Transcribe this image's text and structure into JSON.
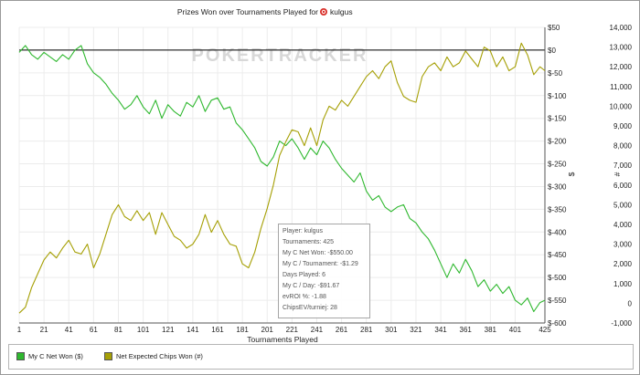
{
  "colors": {
    "series1": "#2fb82f",
    "series2": "#a6a006",
    "grid": "#ececec",
    "zero_line": "#000000"
  },
  "icons": {
    "title_icon": "poker-chip-icon"
  },
  "watermark": "POKERTRACKER",
  "chart_data": {
    "type": "line",
    "title": "Prizes Won over Tournaments Played for",
    "player": "kulgus",
    "xlabel": "Tournaments Played",
    "ylabel_left": "$",
    "ylabel_right": "#",
    "xlim": [
      1,
      425
    ],
    "ylim_left": [
      -600,
      50
    ],
    "ylim_right": [
      -1000,
      14000
    ],
    "x_ticks": [
      1,
      21,
      41,
      61,
      81,
      101,
      121,
      141,
      161,
      181,
      201,
      221,
      241,
      261,
      281,
      301,
      321,
      341,
      361,
      381,
      401,
      425
    ],
    "y_ticks_left": [
      50,
      0,
      -50,
      -100,
      -150,
      -200,
      -250,
      -300,
      -350,
      -400,
      -450,
      -500,
      -550,
      -600
    ],
    "y_ticks_right": [
      14000,
      13000,
      12000,
      11000,
      10000,
      9000,
      8000,
      7000,
      6000,
      5000,
      4000,
      3000,
      2000,
      1000,
      0,
      -1000
    ],
    "y_tick_labels_left": [
      "$50",
      "$0",
      "$-50",
      "$-100",
      "$-150",
      "$-200",
      "$-250",
      "$-300",
      "$-350",
      "$-400",
      "$-450",
      "$-500",
      "$-550",
      "$-600"
    ],
    "y_tick_labels_right": [
      "14,000",
      "13,000",
      "12,000",
      "11,000",
      "10,000",
      "9,000",
      "8,000",
      "7,000",
      "6,000",
      "5,000",
      "4,000",
      "3,000",
      "2,000",
      "1,000",
      "0",
      "-1,000"
    ],
    "grid": true,
    "legend_position": "bottom",
    "series": [
      {
        "name": "My C Net Won ($)",
        "axis": "left",
        "x": [
          1,
          6,
          11,
          16,
          21,
          26,
          31,
          36,
          41,
          46,
          51,
          56,
          61,
          66,
          71,
          76,
          81,
          86,
          91,
          96,
          101,
          106,
          111,
          116,
          121,
          126,
          131,
          136,
          141,
          146,
          151,
          156,
          161,
          166,
          171,
          176,
          181,
          186,
          191,
          196,
          201,
          206,
          211,
          216,
          221,
          226,
          231,
          236,
          241,
          246,
          251,
          256,
          261,
          266,
          271,
          276,
          281,
          286,
          291,
          296,
          301,
          306,
          311,
          316,
          321,
          326,
          331,
          336,
          341,
          346,
          351,
          356,
          361,
          366,
          371,
          376,
          381,
          386,
          391,
          396,
          401,
          406,
          411,
          416,
          421,
          425
        ],
        "y": [
          -5,
          10,
          -10,
          -20,
          -5,
          -15,
          -25,
          -10,
          -20,
          0,
          10,
          -30,
          -50,
          -60,
          -75,
          -95,
          -110,
          -130,
          -120,
          -100,
          -125,
          -140,
          -110,
          -150,
          -120,
          -135,
          -145,
          -115,
          -125,
          -100,
          -135,
          -110,
          -105,
          -130,
          -125,
          -160,
          -175,
          -195,
          -215,
          -245,
          -255,
          -235,
          -200,
          -210,
          -195,
          -215,
          -240,
          -215,
          -230,
          -200,
          -215,
          -240,
          -260,
          -275,
          -290,
          -270,
          -310,
          -330,
          -320,
          -345,
          -355,
          -345,
          -340,
          -370,
          -380,
          -400,
          -415,
          -440,
          -470,
          -500,
          -470,
          -490,
          -460,
          -485,
          -520,
          -505,
          -530,
          -515,
          -535,
          -520,
          -550,
          -560,
          -545,
          -575,
          -555,
          -550
        ]
      },
      {
        "name": "Net Expected Chips Won (#)",
        "axis": "right",
        "x": [
          1,
          6,
          11,
          16,
          21,
          26,
          31,
          36,
          41,
          46,
          51,
          56,
          61,
          66,
          71,
          76,
          81,
          86,
          91,
          96,
          101,
          106,
          111,
          116,
          121,
          126,
          131,
          136,
          141,
          146,
          151,
          156,
          161,
          166,
          171,
          176,
          181,
          186,
          191,
          196,
          201,
          206,
          211,
          216,
          221,
          226,
          231,
          236,
          241,
          246,
          251,
          256,
          261,
          266,
          271,
          276,
          281,
          286,
          291,
          296,
          301,
          306,
          311,
          316,
          321,
          326,
          331,
          336,
          341,
          346,
          351,
          356,
          361,
          366,
          371,
          376,
          381,
          386,
          391,
          396,
          401,
          406,
          411,
          416,
          421,
          425
        ],
        "y": [
          -500,
          -200,
          800,
          1500,
          2200,
          2600,
          2300,
          2800,
          3200,
          2600,
          2500,
          3000,
          1800,
          2500,
          3500,
          4500,
          5000,
          4400,
          4200,
          4700,
          4200,
          4600,
          3500,
          4600,
          4000,
          3400,
          3200,
          2800,
          3000,
          3500,
          4500,
          3600,
          4200,
          3500,
          3000,
          2900,
          2000,
          1800,
          2600,
          3800,
          4800,
          6000,
          7500,
          8200,
          8800,
          8700,
          8000,
          8900,
          8000,
          9300,
          10000,
          9800,
          10300,
          10000,
          10500,
          11000,
          11500,
          11800,
          11400,
          12000,
          12300,
          11200,
          10500,
          10300,
          10200,
          11500,
          12000,
          12200,
          11800,
          12500,
          12000,
          12200,
          12800,
          12400,
          12000,
          13000,
          12800,
          12000,
          12500,
          11800,
          12000,
          13200,
          12600,
          11600,
          12000,
          11800
        ]
      }
    ]
  },
  "tooltip": {
    "lines": [
      "Player: kulgus",
      "Tournaments: 425",
      "My C Net Won: -$550.00",
      "My C / Tournament: -$1.29",
      "Days Played: 6",
      "My C / Day: -$91.67",
      "evROI %: -1.88",
      "ChipsEV/turniej: 28"
    ]
  },
  "legend": {
    "items": [
      {
        "label": "My C Net Won ($)"
      },
      {
        "label": "Net Expected Chips Won (#)"
      }
    ]
  }
}
